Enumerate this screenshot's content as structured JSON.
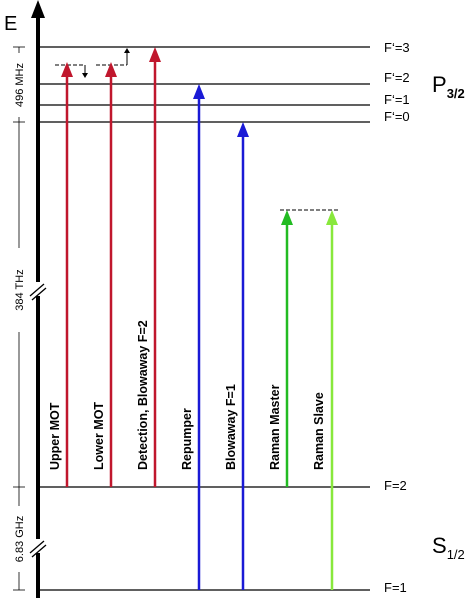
{
  "axis": {
    "label": "E"
  },
  "excited_levels": [
    {
      "label": "F‘=3"
    },
    {
      "label": "F‘=2"
    },
    {
      "label": "F‘=1"
    },
    {
      "label": "F‘=0"
    }
  ],
  "ground_levels": [
    {
      "label": "F=2"
    },
    {
      "label": "F=1"
    }
  ],
  "terms": {
    "excited": {
      "main": "P",
      "sub": "3/2"
    },
    "ground": {
      "main": "S",
      "sub": "1/2"
    }
  },
  "scale_labels": {
    "excited_splitting": "496 MHz",
    "optical": "384 THz",
    "ground_splitting": "6.83 GHz"
  },
  "beams": [
    {
      "label": "Upper MOT",
      "color": "#c0172d"
    },
    {
      "label": "Lower MOT",
      "color": "#c0172d"
    },
    {
      "label": "Detection, Blowaway F=2",
      "color": "#c0172d"
    },
    {
      "label": "Repumper",
      "color": "#1a1ad6"
    },
    {
      "label": "Blowaway F=1",
      "color": "#1a1ad6"
    },
    {
      "label": "Raman Master",
      "color": "#22bb22"
    },
    {
      "label": "Raman Slave",
      "color": "#88e83c"
    }
  ]
}
